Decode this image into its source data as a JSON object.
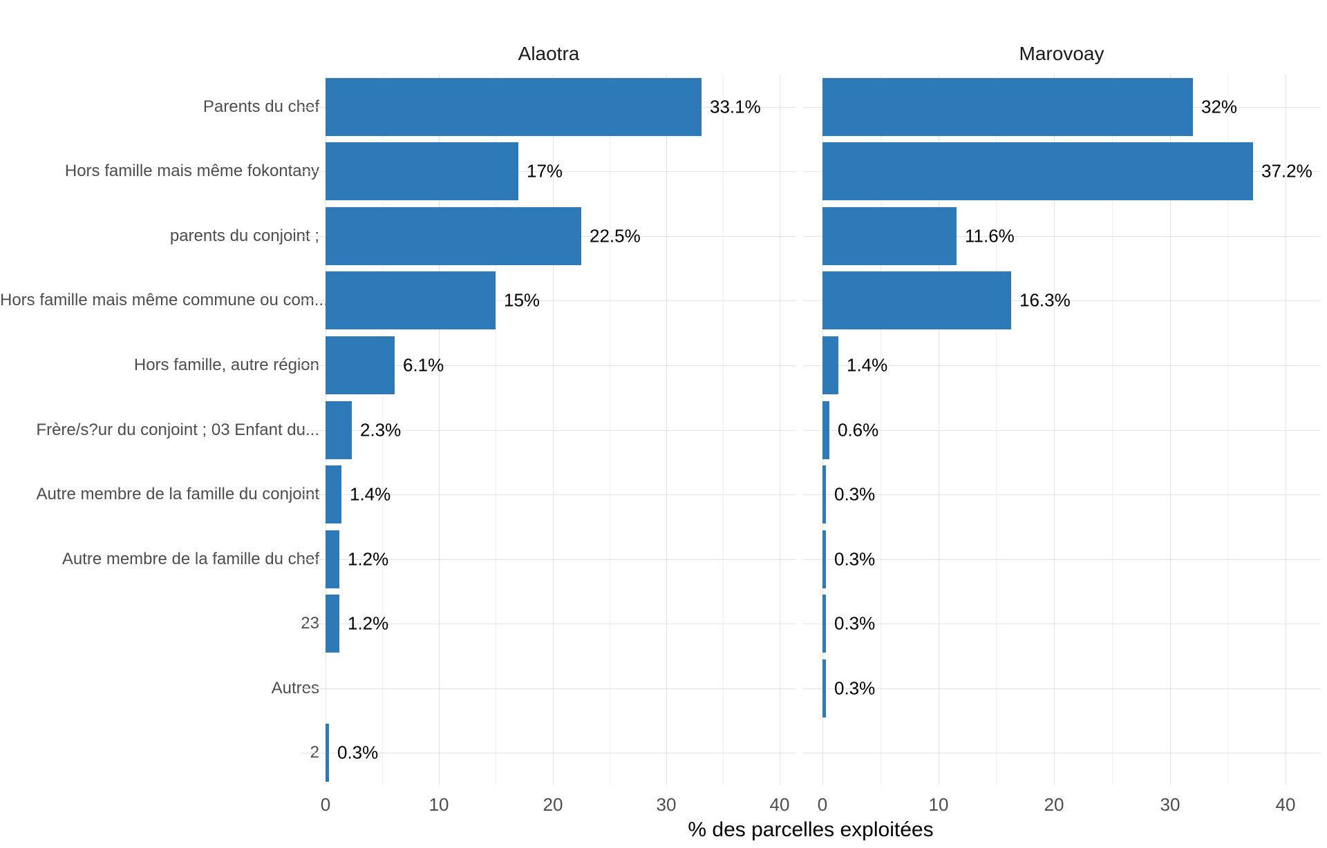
{
  "figure": {
    "background": "#ffffff"
  },
  "chart_data": {
    "type": "bar",
    "orientation": "horizontal",
    "faceted": true,
    "facet_titles": [
      "Alaotra",
      "Marovoay"
    ],
    "categories": [
      "Parents du chef",
      "Hors famille mais même fokontany",
      "parents du conjoint ;",
      "Hors famille mais même commune ou com...",
      "Hors famille, autre région",
      "Frère/s?ur du conjoint ; 03 Enfant du...",
      "Autre membre de la famille du conjoint",
      "Autre membre de la famille du chef",
      "23",
      "Autres",
      "2"
    ],
    "series": [
      {
        "name": "Alaotra",
        "values": [
          33.1,
          17,
          22.5,
          15,
          6.1,
          2.3,
          1.4,
          1.2,
          1.2,
          null,
          0.3
        ],
        "labels": [
          "33.1%",
          "17%",
          "22.5%",
          "15%",
          "6.1%",
          "2.3%",
          "1.4%",
          "1.2%",
          "1.2%",
          "",
          "0.3%"
        ]
      },
      {
        "name": "Marovoay",
        "values": [
          32,
          37.2,
          11.6,
          16.3,
          1.4,
          0.6,
          0.3,
          0.3,
          0.3,
          0.3,
          null
        ],
        "labels": [
          "32%",
          "37.2%",
          "11.6%",
          "16.3%",
          "1.4%",
          "0.6%",
          "0.3%",
          "0.3%",
          "0.3%",
          "0.3%",
          ""
        ]
      }
    ],
    "xlabel": "% des parcelles exploitées",
    "x_ticks": [
      0,
      10,
      20,
      30,
      40
    ],
    "x_minor_ticks": [
      5,
      15,
      25,
      35
    ],
    "xlim": [
      0,
      40
    ],
    "grid": true,
    "legend": false,
    "colors": {
      "bar": "#2e79b7",
      "grid_major": "#e3e3e3",
      "grid_minor": "#f0f0f0",
      "axis_text": "#4d4d4d",
      "value_text": "#000000",
      "strip_text": "#1a1a1a"
    }
  }
}
